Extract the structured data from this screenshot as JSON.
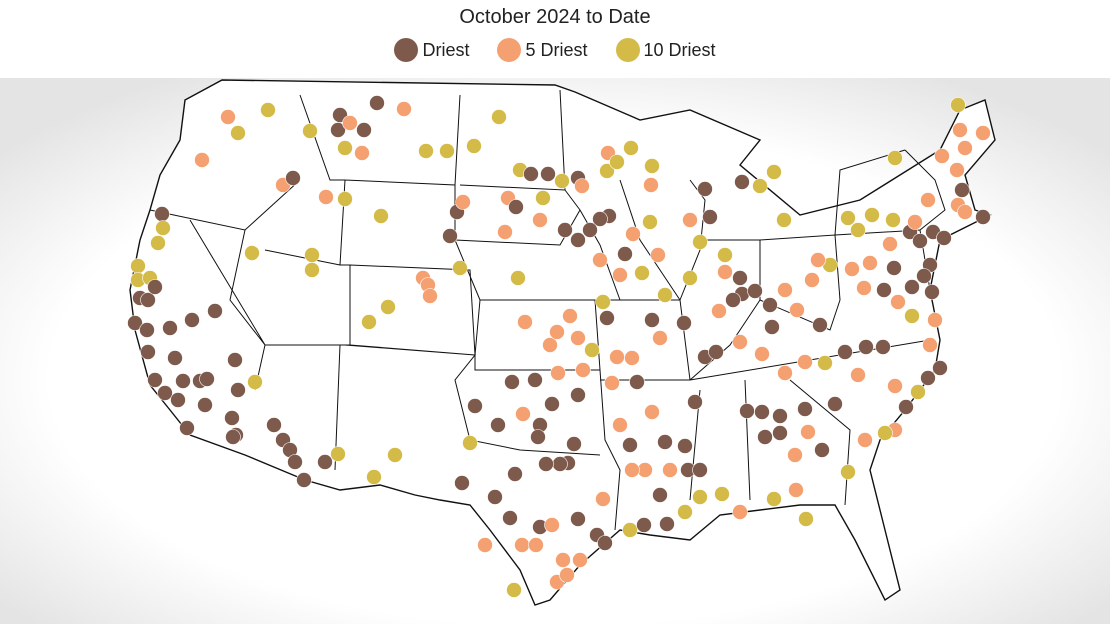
{
  "title": "October 2024 to Date",
  "legend": {
    "items": [
      {
        "name": "Driest",
        "color": "#7d5a4b"
      },
      {
        "name": "5 Driest",
        "color": "#f5a071"
      },
      {
        "name": "10 Driest",
        "color": "#d4bb48"
      }
    ]
  }
}
